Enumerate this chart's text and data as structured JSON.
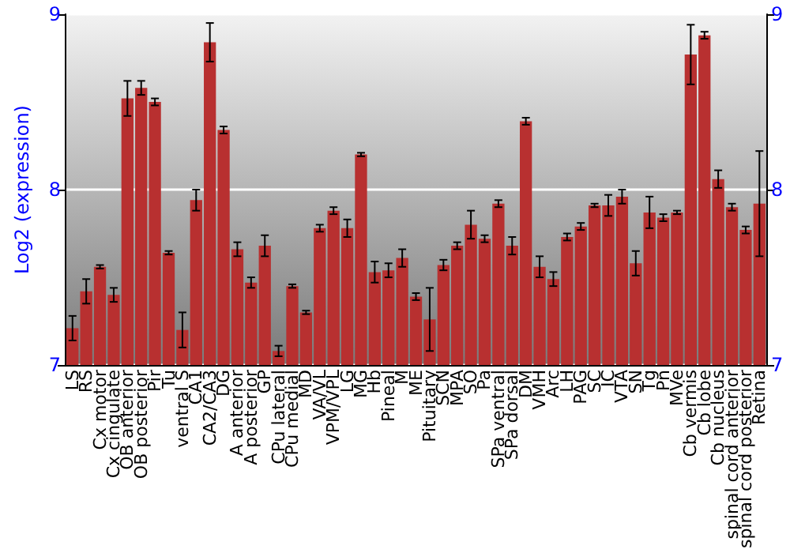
{
  "chart_data": {
    "type": "bar",
    "ylabel": "Log2 (expression)",
    "categories": [
      "LS",
      "RS",
      "Cx motor",
      "Cx cingulate",
      "OB anterior",
      "OB posterior",
      "Pir",
      "Tu",
      "ventral S",
      "CA1",
      "CA2/CA3",
      "DG",
      "A anterior",
      "A posterior",
      "GP",
      "CPu lateral",
      "CPu medial",
      "MD",
      "VA/VL",
      "VPM/VPL",
      "LG",
      "MG",
      "Hb",
      "Pineal",
      "M",
      "ME",
      "Pituitary",
      "SCN",
      "MPA",
      "SO",
      "Pa",
      "SPa ventral",
      "SPa dorsal",
      "DM",
      "VMH",
      "Arc",
      "LH",
      "PAG",
      "SC",
      "IC",
      "VTA",
      "SN",
      "Tg",
      "Pn",
      "MVe",
      "Cb vermis",
      "Cb lobe",
      "Cb nucleus",
      "spinal cord anterior",
      "spinal cord posterior",
      "Retina"
    ],
    "series": [
      {
        "color": "#b83030",
        "values": [
          7.21,
          7.42,
          7.56,
          7.4,
          8.52,
          8.58,
          8.5,
          7.64,
          7.2,
          7.94,
          8.84,
          8.34,
          7.66,
          7.47,
          7.68,
          7.08,
          7.45,
          7.3,
          7.78,
          7.88,
          7.78,
          8.2,
          7.53,
          7.54,
          7.61,
          7.39,
          7.26,
          7.57,
          7.68,
          7.8,
          7.72,
          7.92,
          7.68,
          8.39,
          7.56,
          7.49,
          7.73,
          7.79,
          7.91,
          7.91,
          7.96,
          7.58,
          7.87,
          7.84,
          7.87,
          8.77,
          8.88,
          8.06,
          7.9,
          7.77,
          7.92
        ],
        "errors": [
          0.07,
          0.07,
          0.01,
          0.04,
          0.1,
          0.04,
          0.02,
          0.01,
          0.1,
          0.06,
          0.11,
          0.02,
          0.04,
          0.03,
          0.06,
          0.03,
          0.01,
          0.01,
          0.02,
          0.02,
          0.05,
          0.01,
          0.06,
          0.04,
          0.05,
          0.02,
          0.18,
          0.03,
          0.02,
          0.08,
          0.02,
          0.02,
          0.05,
          0.02,
          0.06,
          0.04,
          0.02,
          0.02,
          0.01,
          0.06,
          0.04,
          0.07,
          0.09,
          0.02,
          0.01,
          0.17,
          0.02,
          0.05,
          0.02,
          0.02,
          0.3
        ]
      }
    ],
    "ylim": [
      7,
      9
    ],
    "yticks": [
      7,
      8,
      9
    ],
    "y2lim": [
      7,
      9
    ],
    "y2ticks": [
      7,
      8,
      9
    ],
    "grid": "y"
  }
}
